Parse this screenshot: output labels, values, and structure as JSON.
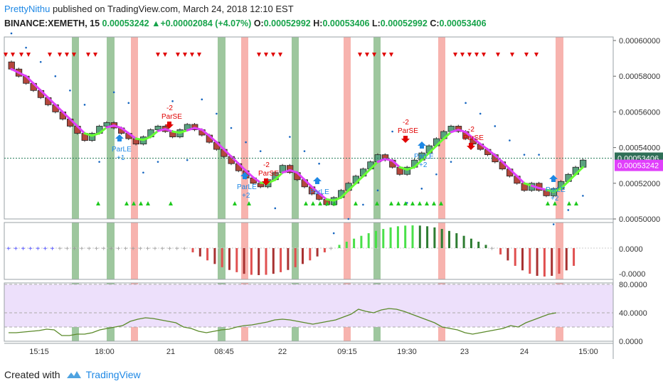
{
  "header": {
    "user": "PrettyNithu",
    "published_text": "published on TradingView.com, March 24, 2018 12:10 EST",
    "symbol": "BINANCE:XEMETH, 15",
    "last": "0.00053242",
    "change": "+0.00002084 (+4.07%)",
    "o_label": "O:",
    "o_value": "0.00052992",
    "h_label": "H:",
    "h_value": "0.00053406",
    "l_label": "L:",
    "l_value": "0.00052992",
    "c_label": "C:",
    "c_value": "0.00053406"
  },
  "footer": {
    "created_with": "Created with",
    "brand": "TradingView"
  },
  "colors": {
    "up_candle": "#5aa17f",
    "down_candle": "#b4473c",
    "pink_line": "#e040fb",
    "green_line": "#66ff33",
    "red_band": "#f28b82",
    "green_band": "#6aa96a",
    "sar_dot": "#1565c0",
    "signal_red": "#e00000",
    "signal_blue": "#1e88e5",
    "rsi_band": "#ede0fb",
    "rsi_line": "#5b8a2a"
  },
  "chart_data": [
    {
      "type": "candlestick",
      "panel": "price",
      "ylim": [
        0.0005,
        0.0006
      ],
      "y_ticks": [
        "0.00060000",
        "0.00058000",
        "0.00056000",
        "0.00054000",
        "0.00052000",
        "0.00050000"
      ],
      "x_ticks": [
        "15:15",
        "18:00",
        "21",
        "08:45",
        "22",
        "09:15",
        "19:30",
        "23",
        "24",
        "15:00"
      ],
      "close": [
        0.000584,
        0.00058,
        0.000576,
        0.000572,
        0.000568,
        0.000564,
        0.00056,
        0.000556,
        0.000552,
        0.000548,
        0.000544,
        0.000548,
        0.000552,
        0.000554,
        0.000551,
        0.000548,
        0.000545,
        0.000542,
        0.000546,
        0.00055,
        0.000552,
        0.000549,
        0.000546,
        0.00055,
        0.000553,
        0.00055,
        0.000547,
        0.000543,
        0.000539,
        0.000535,
        0.000531,
        0.000527,
        0.000523,
        0.00052,
        0.000518,
        0.000522,
        0.000526,
        0.00053,
        0.000526,
        0.000522,
        0.000518,
        0.000514,
        0.000511,
        0.000508,
        0.000512,
        0.000516,
        0.00052,
        0.000524,
        0.000528,
        0.000532,
        0.000536,
        0.000533,
        0.000529,
        0.000525,
        0.000529,
        0.000533,
        0.000537,
        0.000541,
        0.000545,
        0.000549,
        0.000552,
        0.000549,
        0.000545,
        0.000542,
        0.000539,
        0.000536,
        0.000532,
        0.000528,
        0.000524,
        0.00052,
        0.000516,
        0.00052,
        0.000516,
        0.000513,
        0.000517,
        0.000521,
        0.000525,
        0.000529,
        0.000533
      ],
      "price_labels": [
        "0.00053406",
        "0.00053242"
      ],
      "signals": [
        {
          "type": "ParSE",
          "value": "-2"
        },
        {
          "type": "ParLE",
          "value": "+1"
        },
        {
          "type": "ParLE",
          "value": "+2"
        },
        {
          "type": "ParSE",
          "value": "-2"
        },
        {
          "type": "ParLE",
          "value": ""
        },
        {
          "type": "ParSE",
          "value": "-2"
        },
        {
          "type": "ParLE",
          "value": "+2"
        },
        {
          "type": "ParSE",
          "value": "-2"
        },
        {
          "type": "ParLE",
          "value": "+2"
        }
      ]
    },
    {
      "type": "histogram",
      "panel": "momentum",
      "y_ticks": [
        "0.0000",
        "-0.0000"
      ]
    },
    {
      "type": "line",
      "panel": "oscillator",
      "ylim": [
        0,
        80
      ],
      "y_ticks": [
        "80.0000",
        "40.0000",
        "0.0000"
      ],
      "band": [
        20,
        80
      ]
    }
  ]
}
